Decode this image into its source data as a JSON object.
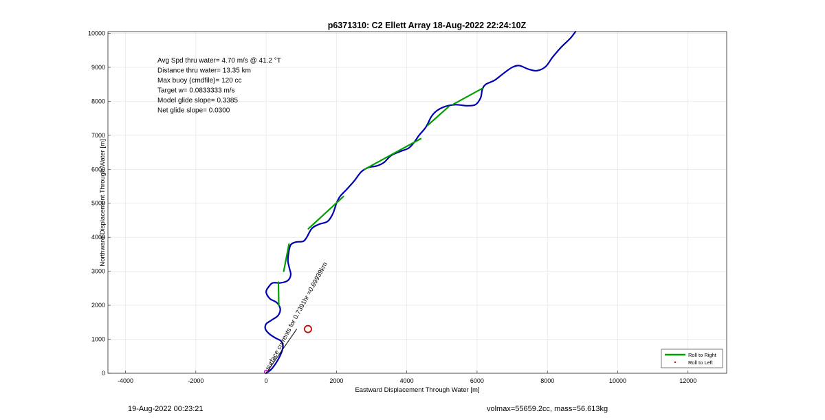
{
  "chart_data": {
    "type": "line",
    "title": "p6371310: C2 Ellett Array 18-Aug-2022 22:24:10Z",
    "xlabel": "Eastward Displacement Through Water [m]",
    "ylabel": "Northward Displacement Through Water [m]",
    "xlim": [
      -4500,
      13100
    ],
    "ylim": [
      0,
      10050
    ],
    "xticks": [
      -4000,
      -2000,
      0,
      2000,
      4000,
      6000,
      8000,
      10000,
      12000
    ],
    "xtick_labels": [
      "-4000",
      "-2000",
      "0",
      "2000",
      "4000",
      "6000",
      "8000",
      "10000",
      "12000"
    ],
    "yticks": [
      0,
      1000,
      2000,
      3000,
      4000,
      5000,
      6000,
      7000,
      8000,
      9000,
      10000
    ],
    "ytick_labels": [
      "0",
      "1000",
      "2000",
      "3000",
      "4000",
      "5000",
      "6000",
      "7000",
      "8000",
      "9000",
      "10000"
    ],
    "grid": true,
    "legend_position": "bottom-right",
    "colors": {
      "track": "#0000b4",
      "roll_right": "#00a000",
      "roll_left": "#e00000",
      "marker": "#cc0000",
      "start": "#c000c0"
    },
    "stats": [
      "Avg Spd thru water=  4.70 m/s @  41.2 °T",
      "Distance thru water= 13.35 km",
      "Max buoy (cmdfile)= 120 cc",
      "Target w= 0.0833333 m/s",
      "Model glide slope= 0.3385",
      "Net glide slope= 0.0300"
    ],
    "series": [
      {
        "name": "Roll to Right",
        "segments": [
          [
            [
              350,
              2680
            ],
            [
              360,
              2000
            ]
          ],
          [
            [
              500,
              3000
            ],
            [
              650,
              3800
            ]
          ],
          [
            [
              1200,
              4250
            ],
            [
              2200,
              5200
            ]
          ],
          [
            [
              2800,
              6000
            ],
            [
              4400,
              6900
            ]
          ],
          [
            [
              4600,
              7300
            ],
            [
              5200,
              7850
            ]
          ],
          [
            [
              5300,
              7900
            ],
            [
              6150,
              8380
            ]
          ]
        ]
      },
      {
        "name": "Roll to Left",
        "points": []
      },
      {
        "name": "track",
        "points": [
          [
            0,
            0
          ],
          [
            150,
            120
          ],
          [
            280,
            300
          ],
          [
            380,
            480
          ],
          [
            450,
            650
          ],
          [
            480,
            820
          ],
          [
            420,
            950
          ],
          [
            280,
            1030
          ],
          [
            100,
            1150
          ],
          [
            -20,
            1300
          ],
          [
            0,
            1450
          ],
          [
            150,
            1560
          ],
          [
            340,
            1700
          ],
          [
            400,
            1900
          ],
          [
            300,
            2080
          ],
          [
            100,
            2200
          ],
          [
            0,
            2400
          ],
          [
            100,
            2580
          ],
          [
            200,
            2660
          ],
          [
            420,
            2660
          ],
          [
            620,
            2730
          ],
          [
            700,
            2900
          ],
          [
            660,
            3100
          ],
          [
            620,
            3300
          ],
          [
            640,
            3550
          ],
          [
            700,
            3780
          ],
          [
            850,
            3860
          ],
          [
            1050,
            3880
          ],
          [
            1150,
            3990
          ],
          [
            1300,
            4260
          ],
          [
            1500,
            4380
          ],
          [
            1750,
            4470
          ],
          [
            1900,
            4700
          ],
          [
            2000,
            5000
          ],
          [
            2100,
            5200
          ],
          [
            2300,
            5420
          ],
          [
            2500,
            5650
          ],
          [
            2700,
            5920
          ],
          [
            2900,
            6050
          ],
          [
            3150,
            6100
          ],
          [
            3350,
            6200
          ],
          [
            3550,
            6400
          ],
          [
            3800,
            6520
          ],
          [
            4050,
            6620
          ],
          [
            4200,
            6780
          ],
          [
            4350,
            7000
          ],
          [
            4550,
            7250
          ],
          [
            4700,
            7550
          ],
          [
            4850,
            7720
          ],
          [
            5100,
            7850
          ],
          [
            5400,
            7900
          ],
          [
            5700,
            7870
          ],
          [
            5950,
            7900
          ],
          [
            6100,
            8100
          ],
          [
            6150,
            8350
          ],
          [
            6250,
            8500
          ],
          [
            6500,
            8620
          ],
          [
            6750,
            8820
          ],
          [
            7000,
            9000
          ],
          [
            7200,
            9050
          ],
          [
            7450,
            8950
          ],
          [
            7700,
            8900
          ],
          [
            7950,
            9020
          ],
          [
            8150,
            9300
          ],
          [
            8400,
            9600
          ],
          [
            8650,
            9850
          ],
          [
            8800,
            10050
          ]
        ]
      }
    ],
    "annotations": {
      "current_text": "surface currents for 0.7391hr =0.69939km",
      "current_vector": {
        "from": [
          0,
          0
        ],
        "to": [
          870,
          1300
        ]
      },
      "current_circle": [
        1190,
        1300
      ]
    }
  },
  "footer": {
    "left_text": "19-Aug-2022 00:23:21",
    "right_text": "volmax=55659.2cc, mass=56.613kg"
  }
}
